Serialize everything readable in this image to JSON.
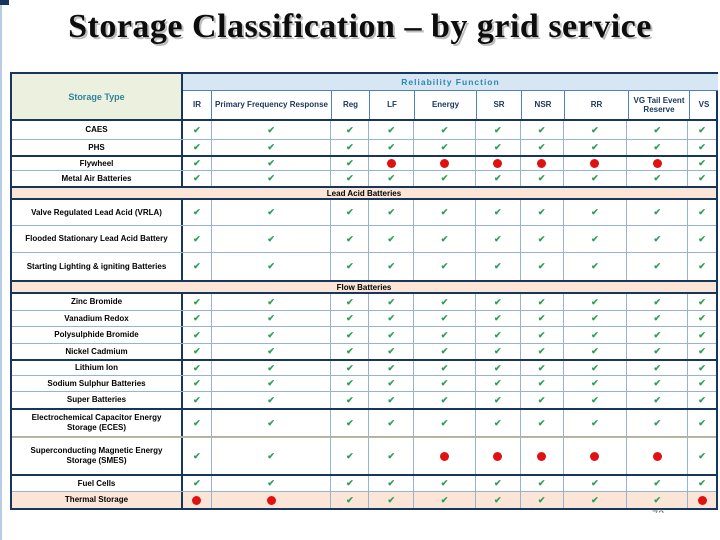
{
  "title": "Storage Classification – by grid service",
  "page_number": "72",
  "colors": {
    "border_navy": "#17365d",
    "grid_blue": "#95b3d7",
    "band_blue_bg": "#d6e6f2",
    "band_blue_text": "#2e86b5",
    "storage_type_bg": "#ebf1de",
    "storage_type_text": "#31849b",
    "section_bg": "#fbe5d6",
    "check_green": "#2e9e56",
    "dot_red": "#e01111"
  },
  "icons": {
    "check": "check-icon",
    "dot": "dot-icon",
    "check_glyph": "✔"
  },
  "table": {
    "storage_type_header": "Storage Type",
    "reliability_header": "Reliability  Function",
    "columns": [
      "IR",
      "Primary Frequency Response",
      "Reg",
      "LF",
      "Energy",
      "SR",
      "NSR",
      "RR",
      "VG Tail Event Reserve",
      "VS"
    ],
    "rows": [
      {
        "label": "CAES",
        "cells": [
          "check",
          "check",
          "check",
          "check",
          "check",
          "check",
          "check",
          "check",
          "check",
          "check"
        ]
      },
      {
        "label": "PHS",
        "cells": [
          "check",
          "check",
          "check",
          "check",
          "check",
          "check",
          "check",
          "check",
          "check",
          "check"
        ]
      },
      {
        "label": "Flywheel",
        "cells": [
          "check",
          "check",
          "check",
          "dot",
          "dot",
          "dot",
          "dot",
          "dot",
          "dot",
          "check"
        ]
      },
      {
        "label": "Metal Air Batteries",
        "cells": [
          "check",
          "check",
          "check",
          "check",
          "check",
          "check",
          "check",
          "check",
          "check",
          "check"
        ]
      },
      {
        "section": "Lead Acid Batteries"
      },
      {
        "label": "Valve Regulated Lead Acid (VRLA)",
        "cells": [
          "check",
          "check",
          "check",
          "check",
          "check",
          "check",
          "check",
          "check",
          "check",
          "check"
        ]
      },
      {
        "label": "Flooded Stationary Lead Acid Battery",
        "cells": [
          "check",
          "check",
          "check",
          "check",
          "check",
          "check",
          "check",
          "check",
          "check",
          "check"
        ]
      },
      {
        "label": "Starting Lighting & igniting Batteries",
        "cells": [
          "check",
          "check",
          "check",
          "check",
          "check",
          "check",
          "check",
          "check",
          "check",
          "check"
        ]
      },
      {
        "section": "Flow Batteries"
      },
      {
        "label": "Zinc Bromide",
        "cells": [
          "check",
          "check",
          "check",
          "check",
          "check",
          "check",
          "check",
          "check",
          "check",
          "check"
        ]
      },
      {
        "label": "Vanadium Redox",
        "cells": [
          "check",
          "check",
          "check",
          "check",
          "check",
          "check",
          "check",
          "check",
          "check",
          "check"
        ]
      },
      {
        "label": "Polysulphide Bromide",
        "cells": [
          "check",
          "check",
          "check",
          "check",
          "check",
          "check",
          "check",
          "check",
          "check",
          "check"
        ]
      },
      {
        "label": "Nickel Cadmium",
        "cells": [
          "check",
          "check",
          "check",
          "check",
          "check",
          "check",
          "check",
          "check",
          "check",
          "check"
        ]
      },
      {
        "label": "Lithium Ion",
        "cells": [
          "check",
          "check",
          "check",
          "check",
          "check",
          "check",
          "check",
          "check",
          "check",
          "check"
        ]
      },
      {
        "label": "Sodium Sulphur Batteries",
        "cells": [
          "check",
          "check",
          "check",
          "check",
          "check",
          "check",
          "check",
          "check",
          "check",
          "check"
        ]
      },
      {
        "label": "Super Batteries",
        "cells": [
          "check",
          "check",
          "check",
          "check",
          "check",
          "check",
          "check",
          "check",
          "check",
          "check"
        ]
      },
      {
        "label": "Electrochemical Capacitor Energy Storage (ECES)",
        "cells": [
          "check",
          "check",
          "check",
          "check",
          "check",
          "check",
          "check",
          "check",
          "check",
          "check"
        ]
      },
      {
        "label": "Superconducting Magnetic Energy Storage (SMES)",
        "cells": [
          "check",
          "check",
          "check",
          "check",
          "dot",
          "dot",
          "dot",
          "dot",
          "dot",
          "check"
        ]
      },
      {
        "label": "Fuel Cells",
        "cells": [
          "check",
          "check",
          "check",
          "check",
          "check",
          "check",
          "check",
          "check",
          "check",
          "check"
        ]
      },
      {
        "label": "Thermal Storage",
        "highlight": true,
        "cells": [
          "dot",
          "dot",
          "check",
          "check",
          "check",
          "check",
          "check",
          "check",
          "check",
          "dot"
        ]
      }
    ]
  }
}
